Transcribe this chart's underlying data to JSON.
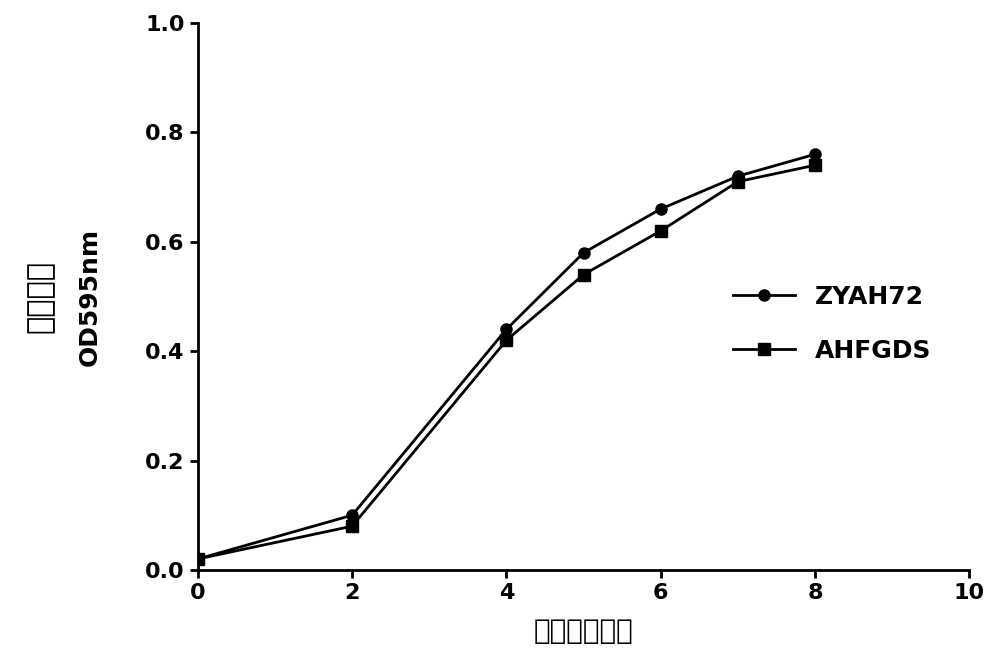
{
  "x": [
    0,
    2,
    4,
    5,
    6,
    7,
    8
  ],
  "zyah72_y": [
    0.02,
    0.1,
    0.44,
    0.58,
    0.66,
    0.72,
    0.76
  ],
  "ahfgds_y": [
    0.02,
    0.08,
    0.42,
    0.54,
    0.62,
    0.71,
    0.74
  ],
  "xlabel": "时间（小时）",
  "ylabel_cn": "生长曲线",
  "ylabel_en": "OD595nm",
  "xlim": [
    0,
    10
  ],
  "ylim": [
    0.0,
    1.0
  ],
  "xticks": [
    0,
    2,
    4,
    6,
    8,
    10
  ],
  "yticks": [
    0.0,
    0.2,
    0.4,
    0.6,
    0.8,
    1.0
  ],
  "legend_labels": [
    "ZYAH72",
    "AHFGDS"
  ],
  "line_color": "#000000",
  "bg_color": "#ffffff",
  "linewidth": 2.0,
  "markersize": 8
}
